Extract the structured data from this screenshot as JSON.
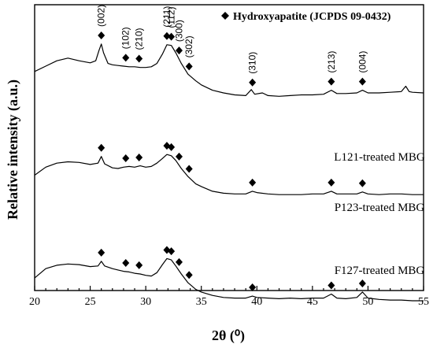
{
  "chart_data": {
    "type": "line",
    "xlabel": "2θ (⁰)",
    "ylabel": "Relative intensity (a.u.)",
    "xlim": [
      20,
      55
    ],
    "x_ticks": [
      20,
      25,
      30,
      35,
      40,
      45,
      50,
      55
    ],
    "y_ticks": [],
    "grid": false,
    "legend": {
      "position": "top-right",
      "entries": [
        {
          "marker": "diamond",
          "label": "Hydroxyapatite (JCPDS 09-0432)"
        }
      ]
    },
    "peak_labels": [
      {
        "text": "(002)",
        "x": 26.0
      },
      {
        "text": "(102)",
        "x": 28.2
      },
      {
        "text": "(210)",
        "x": 29.4
      },
      {
        "text": "(211)",
        "x": 31.9
      },
      {
        "text": "(112)",
        "x": 32.3
      },
      {
        "text": "(300)",
        "x": 33.0
      },
      {
        "text": "(302)",
        "x": 33.9
      },
      {
        "text": "(310)",
        "x": 39.6
      },
      {
        "text": "(213)",
        "x": 46.7
      },
      {
        "text": "(004)",
        "x": 49.5
      }
    ],
    "series": [
      {
        "name": "L121-treated MBG",
        "points": [
          [
            20,
            3.6
          ],
          [
            21,
            4.0
          ],
          [
            22,
            4.4
          ],
          [
            23,
            4.6
          ],
          [
            24,
            4.4
          ],
          [
            25,
            4.25
          ],
          [
            25.5,
            4.4
          ],
          [
            25.8,
            5.2
          ],
          [
            26.0,
            5.65
          ],
          [
            26.2,
            5.0
          ],
          [
            26.6,
            4.2
          ],
          [
            27,
            4.1
          ],
          [
            27.5,
            4.05
          ],
          [
            28,
            4.0
          ],
          [
            28.5,
            3.95
          ],
          [
            29,
            3.95
          ],
          [
            29.5,
            3.9
          ],
          [
            30,
            3.9
          ],
          [
            30.5,
            3.95
          ],
          [
            31,
            4.2
          ],
          [
            31.5,
            4.9
          ],
          [
            31.9,
            5.6
          ],
          [
            32.3,
            5.55
          ],
          [
            32.7,
            5.0
          ],
          [
            33.2,
            4.2
          ],
          [
            33.8,
            3.4
          ],
          [
            34.5,
            2.9
          ],
          [
            35,
            2.6
          ],
          [
            36,
            2.2
          ],
          [
            37,
            2.0
          ],
          [
            38,
            1.85
          ],
          [
            39,
            1.8
          ],
          [
            39.5,
            2.25
          ],
          [
            39.8,
            1.9
          ],
          [
            40.5,
            2.0
          ],
          [
            41,
            1.8
          ],
          [
            42,
            1.75
          ],
          [
            43,
            1.8
          ],
          [
            44,
            1.85
          ],
          [
            45,
            1.85
          ],
          [
            46,
            1.9
          ],
          [
            46.7,
            2.2
          ],
          [
            47.2,
            1.95
          ],
          [
            48,
            1.95
          ],
          [
            49,
            2.0
          ],
          [
            49.5,
            2.2
          ],
          [
            50,
            2.0
          ],
          [
            51,
            2.0
          ],
          [
            52,
            2.05
          ],
          [
            53,
            2.1
          ],
          [
            53.4,
            2.5
          ],
          [
            53.7,
            2.1
          ],
          [
            54,
            2.05
          ],
          [
            55,
            2.0
          ]
        ]
      },
      {
        "name": "P123-treated MBG",
        "points": [
          [
            20,
            1.5
          ],
          [
            21,
            2.1
          ],
          [
            22,
            2.4
          ],
          [
            23,
            2.5
          ],
          [
            24,
            2.45
          ],
          [
            25,
            2.3
          ],
          [
            25.7,
            2.4
          ],
          [
            26.0,
            2.9
          ],
          [
            26.3,
            2.35
          ],
          [
            27,
            2.05
          ],
          [
            27.5,
            2.0
          ],
          [
            28,
            2.1
          ],
          [
            28.5,
            2.15
          ],
          [
            29,
            2.1
          ],
          [
            29.5,
            2.2
          ],
          [
            30,
            2.1
          ],
          [
            30.5,
            2.15
          ],
          [
            31,
            2.4
          ],
          [
            31.5,
            2.75
          ],
          [
            31.9,
            3.05
          ],
          [
            32.3,
            2.95
          ],
          [
            32.7,
            2.6
          ],
          [
            33.2,
            2.0
          ],
          [
            33.8,
            1.4
          ],
          [
            34.5,
            0.85
          ],
          [
            35,
            0.65
          ],
          [
            36,
            0.3
          ],
          [
            37,
            0.15
          ],
          [
            38,
            0.1
          ],
          [
            39,
            0.1
          ],
          [
            39.6,
            0.3
          ],
          [
            40,
            0.2
          ],
          [
            41,
            0.1
          ],
          [
            42,
            0.05
          ],
          [
            43,
            0.05
          ],
          [
            44,
            0.05
          ],
          [
            45,
            0.1
          ],
          [
            46,
            0.1
          ],
          [
            46.7,
            0.3
          ],
          [
            47.2,
            0.1
          ],
          [
            48,
            0.1
          ],
          [
            49,
            0.1
          ],
          [
            49.5,
            0.25
          ],
          [
            50,
            0.1
          ],
          [
            51,
            0.05
          ],
          [
            52,
            0.1
          ],
          [
            53,
            0.1
          ],
          [
            54,
            0.05
          ],
          [
            55,
            0.05
          ]
        ]
      },
      {
        "name": "F127-treated MBG",
        "points": [
          [
            20,
            -0.3
          ],
          [
            21,
            0.4
          ],
          [
            22,
            0.65
          ],
          [
            23,
            0.75
          ],
          [
            24,
            0.7
          ],
          [
            25,
            0.55
          ],
          [
            25.7,
            0.6
          ],
          [
            26.0,
            0.95
          ],
          [
            26.3,
            0.6
          ],
          [
            27,
            0.4
          ],
          [
            27.5,
            0.3
          ],
          [
            28,
            0.2
          ],
          [
            28.5,
            0.15
          ],
          [
            29,
            0.05
          ],
          [
            29.5,
            0.0
          ],
          [
            30,
            -0.1
          ],
          [
            30.5,
            -0.15
          ],
          [
            31,
            0.1
          ],
          [
            31.5,
            0.7
          ],
          [
            31.9,
            1.15
          ],
          [
            32.3,
            1.05
          ],
          [
            32.7,
            0.6
          ],
          [
            33.2,
            0.0
          ],
          [
            33.8,
            -0.65
          ],
          [
            34.5,
            -1.15
          ],
          [
            35,
            -1.35
          ],
          [
            36,
            -1.6
          ],
          [
            37,
            -1.75
          ],
          [
            38,
            -1.8
          ],
          [
            39,
            -1.8
          ],
          [
            39.6,
            -1.65
          ],
          [
            40,
            -1.75
          ],
          [
            41,
            -1.8
          ],
          [
            42,
            -1.85
          ],
          [
            43,
            -1.8
          ],
          [
            44,
            -1.85
          ],
          [
            45,
            -1.8
          ],
          [
            46,
            -1.8
          ],
          [
            46.7,
            -1.5
          ],
          [
            47.2,
            -1.8
          ],
          [
            48,
            -1.85
          ],
          [
            49,
            -1.75
          ],
          [
            49.5,
            -1.35
          ],
          [
            50,
            -1.8
          ],
          [
            51,
            -1.9
          ],
          [
            52,
            -1.95
          ],
          [
            53,
            -1.95
          ],
          [
            54,
            -2.0
          ],
          [
            55,
            -2.0
          ]
        ]
      }
    ],
    "markers": [
      {
        "series": 0,
        "x": [
          26.0,
          28.2,
          29.4,
          31.9,
          32.3,
          33.0,
          33.9,
          39.6,
          46.7,
          49.5
        ]
      },
      {
        "series": 1,
        "x": [
          26.0,
          28.2,
          29.4,
          31.9,
          32.3,
          33.0,
          33.9,
          39.6,
          46.7,
          49.5
        ]
      },
      {
        "series": 2,
        "x": [
          26.0,
          28.2,
          29.4,
          31.9,
          32.3,
          33.0,
          33.9,
          39.6,
          46.7,
          49.5
        ]
      }
    ]
  }
}
